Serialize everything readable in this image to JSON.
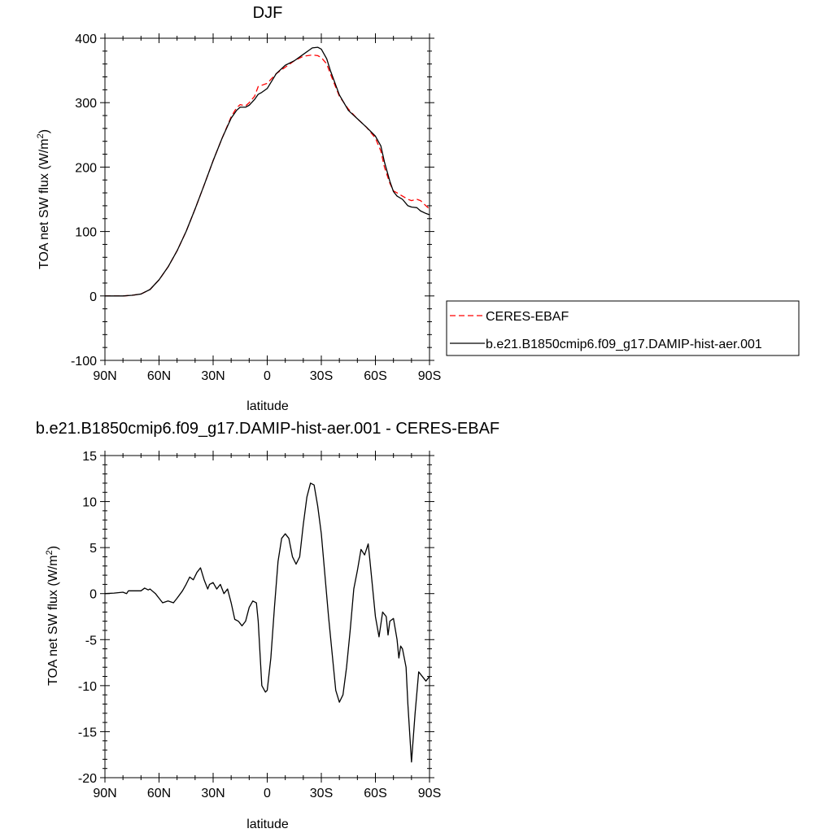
{
  "chart_data": [
    {
      "type": "line",
      "title": "DJF",
      "xlabel": "latitude",
      "ylabel": "TOA net SW flux (W/m",
      "ylabel_sup": "2",
      "ylabel_close": ")",
      "xlim": [
        90,
        -90
      ],
      "ylim": [
        -100,
        400
      ],
      "xticks": [
        90,
        60,
        30,
        0,
        -30,
        -60,
        -90
      ],
      "xtick_labels": [
        "90N",
        "60N",
        "30N",
        "0",
        "30S",
        "60S",
        "90S"
      ],
      "yticks": [
        -100,
        0,
        100,
        200,
        300,
        400
      ],
      "ytick_labels": [
        "-100",
        "0",
        "100",
        "200",
        "300",
        "400"
      ],
      "grid": false,
      "legend_placement": "right",
      "series": [
        {
          "name": "CERES-EBAF",
          "color": "#ff0000",
          "dash": "dashed",
          "x": [
            90,
            80,
            75,
            70,
            65,
            60,
            55,
            50,
            45,
            40,
            35,
            30,
            25,
            20,
            17,
            15,
            12,
            10,
            7,
            5,
            3,
            0,
            -5,
            -10,
            -15,
            -20,
            -25,
            -28,
            -30,
            -33,
            -35,
            -40,
            -45,
            -50,
            -55,
            -60,
            -63,
            -65,
            -68,
            -70,
            -72,
            -75,
            -78,
            -80,
            -83,
            -85,
            -88,
            -90
          ],
          "y": [
            0,
            0,
            1,
            3,
            10,
            25,
            45,
            70,
            100,
            135,
            172,
            210,
            245,
            278,
            292,
            297,
            295,
            300,
            310,
            325,
            327,
            330,
            345,
            355,
            365,
            372,
            374,
            373,
            370,
            360,
            345,
            310,
            290,
            275,
            262,
            245,
            225,
            200,
            175,
            163,
            160,
            155,
            150,
            148,
            150,
            148,
            140,
            135
          ]
        },
        {
          "name": "b.e21.B1850cmip6.f09_g17.DAMIP-hist-aer.001",
          "color": "#000000",
          "dash": "solid",
          "x": [
            90,
            80,
            75,
            70,
            65,
            60,
            55,
            50,
            45,
            40,
            35,
            30,
            25,
            20,
            17,
            15,
            12,
            10,
            7,
            5,
            3,
            0,
            -5,
            -10,
            -15,
            -20,
            -25,
            -28,
            -30,
            -33,
            -35,
            -40,
            -45,
            -50,
            -55,
            -60,
            -63,
            -65,
            -68,
            -70,
            -72,
            -75,
            -78,
            -80,
            -83,
            -85,
            -88,
            -90
          ],
          "y": [
            0,
            0,
            1,
            3,
            10,
            25,
            45,
            70,
            100,
            135,
            172,
            210,
            245,
            276,
            288,
            293,
            293,
            296,
            305,
            313,
            316,
            322,
            345,
            358,
            365,
            375,
            385,
            386,
            383,
            368,
            350,
            312,
            288,
            275,
            262,
            248,
            233,
            208,
            178,
            162,
            155,
            150,
            140,
            138,
            137,
            132,
            128,
            126
          ]
        }
      ]
    },
    {
      "type": "line",
      "title": "b.e21.B1850cmip6.f09_g17.DAMIP-hist-aer.001 - CERES-EBAF",
      "xlabel": "latitude",
      "ylabel": "TOA net SW flux (W/m",
      "ylabel_sup": "2",
      "ylabel_close": ")",
      "xlim": [
        90,
        -90
      ],
      "ylim": [
        -20,
        15
      ],
      "xticks": [
        90,
        60,
        30,
        0,
        -30,
        -60,
        -90
      ],
      "xtick_labels": [
        "90N",
        "60N",
        "30N",
        "0",
        "30S",
        "60S",
        "90S"
      ],
      "yticks": [
        -20,
        -15,
        -10,
        -5,
        0,
        5,
        10,
        15
      ],
      "ytick_labels": [
        "-20",
        "-15",
        "-10",
        "-5",
        "0",
        "5",
        "10",
        "15"
      ],
      "grid": false,
      "series": [
        {
          "color": "#000000",
          "dash": "solid",
          "x": [
            90,
            85,
            80,
            78,
            77,
            75,
            70,
            68,
            66,
            65,
            62,
            60,
            58,
            55,
            52,
            50,
            47,
            45,
            43,
            41,
            39,
            37,
            35,
            33,
            32,
            30,
            28,
            26,
            24,
            22,
            20,
            18,
            16,
            14,
            12,
            10,
            8,
            6,
            5,
            3,
            1,
            0,
            -2,
            -4,
            -6,
            -8,
            -10,
            -12,
            -14,
            -16,
            -18,
            -20,
            -22,
            -24,
            -26,
            -28,
            -30,
            -32,
            -34,
            -36,
            -38,
            -40,
            -42,
            -44,
            -46,
            -48,
            -50,
            -52,
            -54,
            -56,
            -57,
            -58,
            -60,
            -62,
            -64,
            -66,
            -67,
            -68,
            -70,
            -72,
            -73,
            -74,
            -75,
            -76,
            -77,
            -78,
            -80,
            -82,
            -84,
            -86,
            -88,
            -90
          ],
          "y": [
            0,
            0.05,
            0.15,
            0,
            0.3,
            0.3,
            0.3,
            0.6,
            0.4,
            0.5,
            0,
            -0.5,
            -1.0,
            -0.8,
            -1.0,
            -0.5,
            0.3,
            1.0,
            1.8,
            1.5,
            2.3,
            2.8,
            1.5,
            0.5,
            1.0,
            1.2,
            0.5,
            1.0,
            0,
            0.5,
            -1.0,
            -2.8,
            -3.0,
            -3.5,
            -3.0,
            -1.5,
            -0.8,
            -1.0,
            -3.0,
            -10.0,
            -10.7,
            -10.5,
            -7.0,
            -1.5,
            3.5,
            6.0,
            6.5,
            6.0,
            4.0,
            3.2,
            4.0,
            7.5,
            10.5,
            12.0,
            11.8,
            9.5,
            6.5,
            2.0,
            -2.5,
            -6.5,
            -10.5,
            -11.8,
            -11.0,
            -8.0,
            -4.0,
            0.5,
            2.5,
            4.8,
            4.2,
            5.4,
            3.5,
            1.5,
            -2.5,
            -4.7,
            -2.0,
            -2.5,
            -4.5,
            -3.0,
            -2.7,
            -5.0,
            -7.0,
            -5.7,
            -6.0,
            -7.0,
            -8.0,
            -12.0,
            -18.3,
            -13.0,
            -8.5,
            -9.0,
            -9.5,
            -9.0
          ]
        }
      ]
    }
  ]
}
